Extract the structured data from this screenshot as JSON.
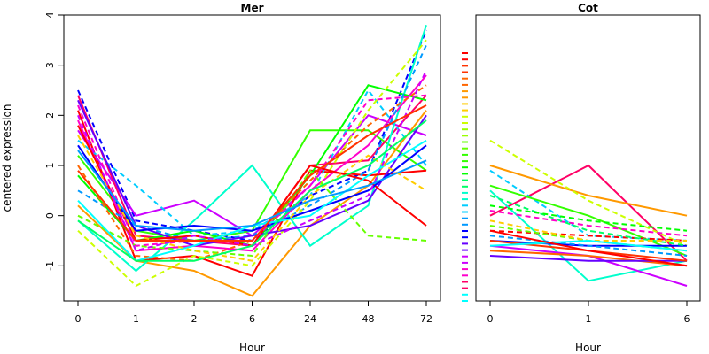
{
  "chart_data": {
    "type": "line",
    "ylabel": "centered expression",
    "ylim": [
      -1.7,
      4.0
    ],
    "y_ticks": [
      -1,
      0,
      1,
      2,
      3,
      4
    ],
    "grid": false,
    "legend": "color key strip between panels",
    "palette": [
      "#ff0000",
      "#ff3300",
      "#ff6600",
      "#ff9900",
      "#ffcc00",
      "#ccff00",
      "#99ff00",
      "#66ff00",
      "#33ff00",
      "#00ff00",
      "#00ff66",
      "#00ffcc",
      "#00ccff",
      "#0099ff",
      "#0000ff",
      "#6600ff",
      "#cc00ff",
      "#ff00cc",
      "#ff0066",
      "#00ffff"
    ],
    "panels": [
      {
        "title": "Mer",
        "xlabel": "Hour",
        "x": [
          "0",
          "1",
          "2",
          "6",
          "24",
          "48",
          "72"
        ],
        "series": [
          {
            "values": [
              2.5,
              -0.1,
              -0.3,
              -0.5,
              0.4,
              0.9,
              3.7
            ],
            "color": "#0000ff",
            "dash": true
          },
          {
            "values": [
              1.7,
              0.0,
              0.3,
              -0.4,
              0.6,
              2.0,
              1.6
            ],
            "color": "#cc00ff",
            "dash": false
          },
          {
            "values": [
              1.2,
              -0.3,
              -0.5,
              -0.3,
              1.7,
              1.7,
              0.9
            ],
            "color": "#33ff00",
            "dash": false
          },
          {
            "values": [
              0.2,
              -0.9,
              -1.1,
              -1.6,
              -0.2,
              0.6,
              2.1
            ],
            "color": "#ff9900",
            "dash": false
          },
          {
            "values": [
              2.4,
              -0.4,
              -0.5,
              -0.6,
              1.0,
              1.1,
              2.4
            ],
            "color": "#ff0066",
            "dash": false
          },
          {
            "values": [
              -0.1,
              -1.1,
              -0.1,
              1.0,
              -0.6,
              0.2,
              3.8
            ],
            "color": "#00ffcc",
            "dash": false
          },
          {
            "values": [
              2.1,
              -0.9,
              -0.8,
              -1.2,
              0.9,
              0.8,
              0.9
            ],
            "color": "#ff0000",
            "dash": false
          },
          {
            "values": [
              1.5,
              0.6,
              -0.4,
              -0.3,
              0.4,
              2.5,
              1.0
            ],
            "color": "#00ccff",
            "dash": true
          },
          {
            "values": [
              0.8,
              -0.5,
              -0.3,
              -0.6,
              0.8,
              2.6,
              2.3
            ],
            "color": "#00ff00",
            "dash": false
          },
          {
            "values": [
              1.9,
              -0.7,
              -0.6,
              -0.7,
              0.5,
              1.4,
              2.8
            ],
            "color": "#ff00cc",
            "dash": false
          },
          {
            "values": [
              0.5,
              -0.2,
              -0.5,
              -0.4,
              0.2,
              0.9,
              3.4
            ],
            "color": "#0099ff",
            "dash": true
          },
          {
            "values": [
              1.0,
              -0.8,
              -0.9,
              -0.5,
              0.7,
              1.8,
              2.6
            ],
            "color": "#ff6600",
            "dash": true
          },
          {
            "values": [
              -0.3,
              -1.4,
              -0.8,
              -1.0,
              0.3,
              2.1,
              3.5
            ],
            "color": "#ccff00",
            "dash": true
          },
          {
            "values": [
              2.3,
              -0.2,
              -0.6,
              -0.4,
              -0.2,
              0.3,
              2.0
            ],
            "color": "#6600ff",
            "dash": false
          },
          {
            "values": [
              0.0,
              -0.6,
              -0.7,
              -0.8,
              0.9,
              -0.4,
              -0.5
            ],
            "color": "#66ff00",
            "dash": true
          },
          {
            "values": [
              1.8,
              -0.5,
              -0.4,
              -0.6,
              1.0,
              0.7,
              -0.2
            ],
            "color": "#ff0000",
            "dash": false
          },
          {
            "values": [
              1.4,
              -0.3,
              -0.2,
              -0.3,
              0.1,
              0.5,
              1.4
            ],
            "color": "#0000ff",
            "dash": false
          },
          {
            "values": [
              2.2,
              -0.6,
              -0.5,
              -0.5,
              0.6,
              2.3,
              2.4
            ],
            "color": "#ff00cc",
            "dash": true
          },
          {
            "values": [
              0.3,
              -0.9,
              -0.6,
              -0.2,
              0.0,
              0.8,
              1.5
            ],
            "color": "#00ffff",
            "dash": false
          },
          {
            "values": [
              1.6,
              -0.4,
              -0.7,
              -0.9,
              0.4,
              1.2,
              0.5
            ],
            "color": "#ffcc00",
            "dash": true
          },
          {
            "values": [
              2.0,
              -0.7,
              -0.4,
              -0.6,
              -0.1,
              0.4,
              2.9
            ],
            "color": "#cc00ff",
            "dash": true
          },
          {
            "values": [
              0.9,
              -0.5,
              -0.5,
              -0.5,
              0.8,
              1.6,
              2.2
            ],
            "color": "#ff3300",
            "dash": false
          },
          {
            "values": [
              -0.1,
              -0.9,
              -0.9,
              -0.6,
              0.5,
              1.0,
              1.9
            ],
            "color": "#00ff66",
            "dash": false
          },
          {
            "values": [
              1.3,
              -0.2,
              -0.3,
              -0.2,
              0.3,
              0.6,
              1.1
            ],
            "color": "#0099ff",
            "dash": false
          }
        ]
      },
      {
        "title": "Cot",
        "xlabel": "Hour",
        "x": [
          "0",
          "1",
          "6"
        ],
        "series": [
          {
            "values": [
              0.0,
              1.0,
              -0.9
            ],
            "color": "#ff0066",
            "dash": false
          },
          {
            "values": [
              1.0,
              0.4,
              0.0
            ],
            "color": "#ff9900",
            "dash": false
          },
          {
            "values": [
              1.5,
              0.3,
              -0.6
            ],
            "color": "#ccff00",
            "dash": true
          },
          {
            "values": [
              0.9,
              -0.4,
              -0.5
            ],
            "color": "#00ccff",
            "dash": true
          },
          {
            "values": [
              0.5,
              -1.3,
              -0.9
            ],
            "color": "#00ffcc",
            "dash": false
          },
          {
            "values": [
              0.6,
              0.0,
              -0.8
            ],
            "color": "#33ff00",
            "dash": false
          },
          {
            "values": [
              -0.6,
              -0.8,
              -1.4
            ],
            "color": "#cc00ff",
            "dash": false
          },
          {
            "values": [
              -0.3,
              -0.4,
              -0.5
            ],
            "color": "#ff0000",
            "dash": true
          },
          {
            "values": [
              -0.5,
              -0.6,
              -0.6
            ],
            "color": "#0000ff",
            "dash": false
          },
          {
            "values": [
              0.1,
              -0.2,
              -0.4
            ],
            "color": "#ff00cc",
            "dash": true
          },
          {
            "values": [
              -0.2,
              -0.5,
              -0.7
            ],
            "color": "#66ff00",
            "dash": true
          },
          {
            "values": [
              -0.7,
              -0.8,
              -1.0
            ],
            "color": "#ff6600",
            "dash": false
          },
          {
            "values": [
              0.4,
              -0.3,
              -0.6
            ],
            "color": "#00ff66",
            "dash": true
          },
          {
            "values": [
              -0.4,
              -0.6,
              -0.8
            ],
            "color": "#0099ff",
            "dash": true
          },
          {
            "values": [
              -0.8,
              -0.9,
              -0.9
            ],
            "color": "#6600ff",
            "dash": false
          },
          {
            "values": [
              -0.1,
              -0.5,
              -0.5
            ],
            "color": "#ffcc00",
            "dash": true
          },
          {
            "values": [
              -0.5,
              -0.7,
              -0.9
            ],
            "color": "#ff3300",
            "dash": false
          },
          {
            "values": [
              0.2,
              -0.1,
              -0.3
            ],
            "color": "#00ff00",
            "dash": true
          },
          {
            "values": [
              -0.6,
              -0.5,
              -0.7
            ],
            "color": "#00ffff",
            "dash": false
          },
          {
            "values": [
              -0.3,
              -0.7,
              -1.0
            ],
            "color": "#ff0000",
            "dash": false
          }
        ]
      }
    ]
  }
}
